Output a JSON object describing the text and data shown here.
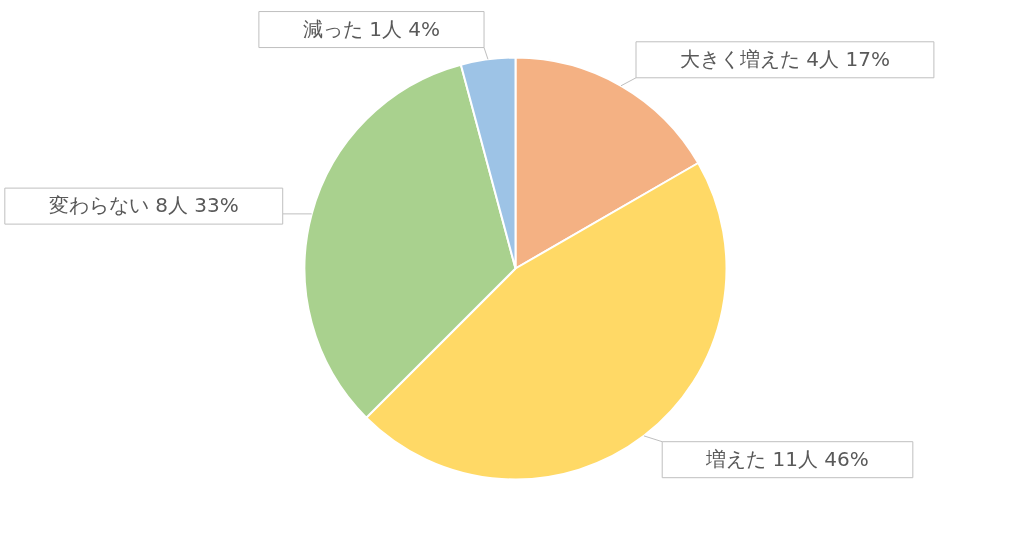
{
  "chart_data": {
    "type": "pie",
    "categories": [
      "大きく増えた",
      "増えた",
      "変わらない",
      "減った"
    ],
    "values": [
      4,
      11,
      8,
      1
    ],
    "value_labels": [
      "4人 17%",
      "11人 46%",
      "8人 33%",
      "1人 4%"
    ],
    "colors": [
      "#f4b183",
      "#ffd966",
      "#a9d18e",
      "#9dc3e6"
    ]
  }
}
